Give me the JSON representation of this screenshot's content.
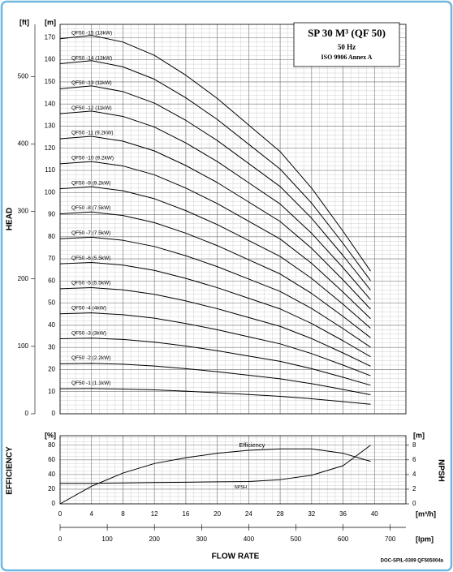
{
  "chart_data": [
    {
      "type": "line",
      "ylabel": "HEAD",
      "yunit": "[m]",
      "y2unit": "[ft]",
      "ylim": [
        0,
        176
      ],
      "yticks": [
        0,
        10,
        20,
        30,
        40,
        50,
        60,
        70,
        80,
        90,
        100,
        110,
        120,
        130,
        140,
        150,
        160,
        170
      ],
      "y2lim": [
        0,
        577.4
      ],
      "y2ticks": [
        0,
        100,
        200,
        300,
        400,
        500
      ],
      "annotations": [
        "SP 30 M³ (QF 50)",
        "50 Hz",
        "ISO 9906 Annex A"
      ],
      "grid": true,
      "x": [
        0,
        4,
        8,
        12,
        16,
        20,
        24,
        28,
        32,
        36,
        39.5
      ],
      "series": [
        {
          "name": "QF50 -1 (1.1kW)",
          "color": "#000000",
          "values": [
            11.3,
            11.4,
            11.2,
            10.8,
            10.2,
            9.5,
            8.7,
            7.9,
            6.8,
            5.5,
            4.3
          ]
        },
        {
          "name": "QF50 -2 (2.2kW)",
          "color": "#000000",
          "values": [
            22.6,
            22.8,
            22.4,
            21.6,
            20.4,
            19,
            17.4,
            15.8,
            13.6,
            11,
            8.6
          ]
        },
        {
          "name": "QF50 -3 (3kW)",
          "color": "#000000",
          "values": [
            33.9,
            34.2,
            33.6,
            32.4,
            30.6,
            28.5,
            26.1,
            23.7,
            20.4,
            16.5,
            12.9
          ]
        },
        {
          "name": "QF50 -4 (4kW)",
          "color": "#000000",
          "values": [
            45.2,
            45.6,
            44.8,
            43.2,
            40.8,
            38,
            34.8,
            31.6,
            27.2,
            22,
            17.2
          ]
        },
        {
          "name": "QF50 -5 (5.5kW)",
          "color": "#000000",
          "values": [
            56.5,
            57,
            56,
            54,
            51,
            47.5,
            43.5,
            39.5,
            34,
            27.5,
            21.5
          ]
        },
        {
          "name": "QF50 -6 (5.5kW)",
          "color": "#000000",
          "values": [
            67.8,
            68.4,
            67.2,
            64.8,
            61.2,
            57,
            52.2,
            47.4,
            40.8,
            33,
            25.8
          ]
        },
        {
          "name": "QF50 -7 (7.5kW)",
          "color": "#000000",
          "values": [
            79.1,
            79.8,
            78.4,
            75.6,
            71.4,
            66.5,
            60.9,
            55.3,
            47.6,
            38.5,
            30.1
          ]
        },
        {
          "name": "QF50 -8 (7.5kW)",
          "color": "#000000",
          "values": [
            90.4,
            91.2,
            89.6,
            86.4,
            81.6,
            76,
            69.6,
            63.2,
            54.4,
            44,
            34.4
          ]
        },
        {
          "name": "QF50 -9 (9.2kW)",
          "color": "#000000",
          "values": [
            101.7,
            102.6,
            100.8,
            97.2,
            91.8,
            85.5,
            78.3,
            71.1,
            61.2,
            49.5,
            38.7
          ]
        },
        {
          "name": "QF50 -10 (9.2kW)",
          "color": "#000000",
          "values": [
            113,
            114,
            112,
            108,
            102,
            95,
            87,
            79,
            68,
            55,
            43
          ]
        },
        {
          "name": "QF50 -11 (9.2kW)",
          "color": "#000000",
          "values": [
            124.3,
            125.4,
            123.2,
            118.8,
            112.2,
            104.5,
            95.7,
            86.9,
            74.8,
            60.5,
            47.3
          ]
        },
        {
          "name": "QF50 -12 (11kW)",
          "color": "#000000",
          "values": [
            135.6,
            136.8,
            134.4,
            129.6,
            122.4,
            114,
            104.4,
            94.8,
            81.6,
            66,
            51.6
          ]
        },
        {
          "name": "QF50 -13 (11kW)",
          "color": "#000000",
          "values": [
            146.9,
            148.2,
            145.6,
            140.4,
            132.6,
            123.5,
            113.1,
            102.7,
            88.4,
            71.5,
            55.9
          ]
        },
        {
          "name": "QF50 -14 (13kW)",
          "color": "#000000",
          "values": [
            158.2,
            159.6,
            156.8,
            151.2,
            142.8,
            133,
            121.8,
            110.6,
            95.2,
            77,
            60.2
          ]
        },
        {
          "name": "QF50 -15 (13kW)",
          "color": "#000000",
          "values": [
            169.5,
            171,
            168,
            162,
            153,
            142.5,
            130.5,
            118.5,
            102,
            82.5,
            64.5
          ]
        }
      ]
    },
    {
      "type": "line",
      "ylabel": "EFFICIENCY",
      "y2label": "NPSH",
      "yunit": "[%]",
      "y2unit": "[m]",
      "ylim": [
        0,
        93
      ],
      "yticks": [
        0,
        20,
        40,
        60,
        80
      ],
      "y2lim": [
        0,
        9.3
      ],
      "y2ticks": [
        0,
        2,
        4,
        6,
        8
      ],
      "xlabel": "FLOW RATE",
      "xunit": "[m³/h]",
      "x2unit": "[lpm]",
      "xlim": [
        0,
        44
      ],
      "xticks": [
        0,
        4,
        8,
        12,
        16,
        20,
        24,
        28,
        32,
        36,
        40
      ],
      "x2lim": [
        0,
        733.3
      ],
      "x2ticks": [
        0,
        100,
        200,
        300,
        400,
        500,
        600,
        700
      ],
      "footer": "DOC-SPIL-0309 QF505004a",
      "grid": true,
      "x": [
        0,
        4,
        8,
        12,
        16,
        20,
        24,
        28,
        32,
        36,
        39.5
      ],
      "series": [
        {
          "name": "Efficiency",
          "color": "#000000",
          "values": [
            0,
            24,
            42,
            55,
            63,
            69,
            73,
            75,
            75,
            69,
            58
          ]
        },
        {
          "name": "NPSH",
          "color": "#000000",
          "axis": "y2",
          "values": [
            2.8,
            2.8,
            2.85,
            2.9,
            2.95,
            3,
            3.05,
            3.3,
            3.9,
            5.2,
            8
          ]
        }
      ]
    }
  ]
}
